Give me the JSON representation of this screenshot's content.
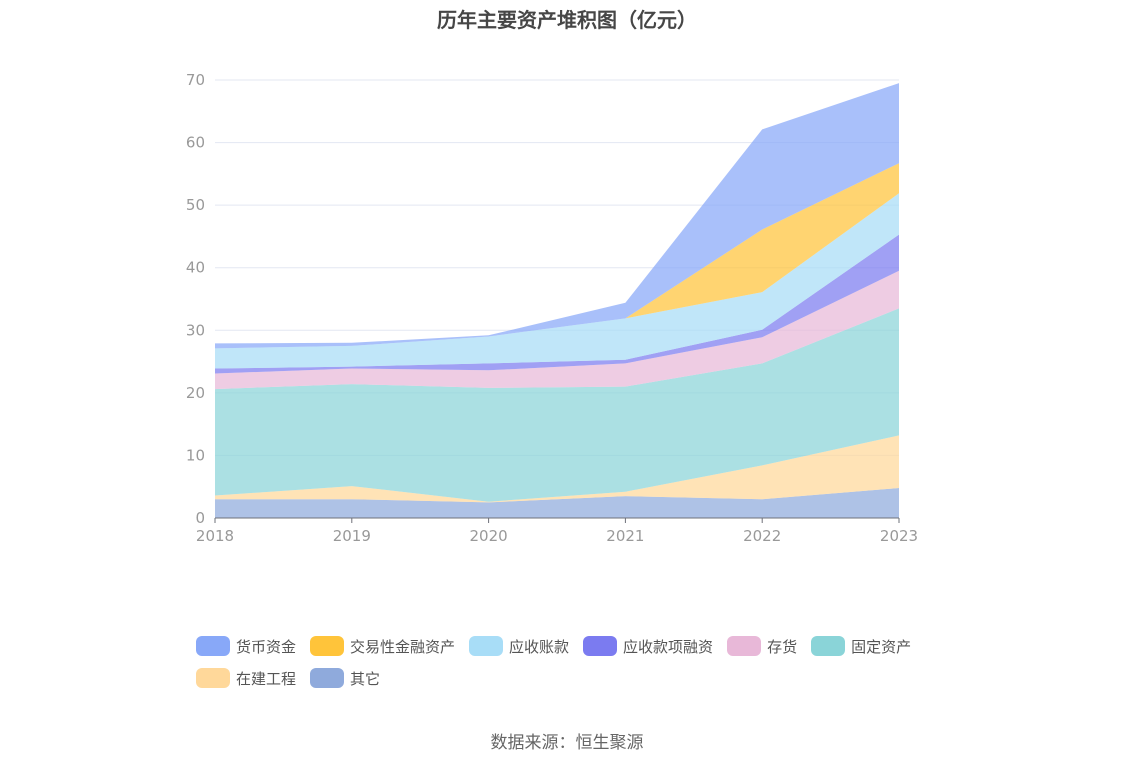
{
  "chart_data": {
    "type": "area",
    "stacked": true,
    "title": "历年主要资产堆积图（亿元）",
    "categories": [
      "2018",
      "2019",
      "2020",
      "2021",
      "2022",
      "2023"
    ],
    "ylim": [
      0,
      70
    ],
    "yticks": [
      0,
      10,
      20,
      30,
      40,
      50,
      60,
      70
    ],
    "xlabel": "",
    "ylabel": "",
    "grid": true,
    "legend_position": "bottom",
    "series": [
      {
        "name": "其它",
        "color": "#8FAADC",
        "values": [
          3.0,
          3.0,
          2.5,
          3.5,
          3.0,
          4.8
        ]
      },
      {
        "name": "在建工程",
        "color": "#FFD89A",
        "values": [
          0.6,
          2.1,
          0.1,
          0.7,
          5.4,
          8.4
        ]
      },
      {
        "name": "固定资产",
        "color": "#8AD4D8",
        "values": [
          17.0,
          16.3,
          18.2,
          16.8,
          16.3,
          20.3
        ]
      },
      {
        "name": "存货",
        "color": "#E8B8D8",
        "values": [
          2.5,
          2.5,
          2.8,
          3.7,
          4.2,
          6.0
        ]
      },
      {
        "name": "应收款项融资",
        "color": "#7B7BF0",
        "values": [
          0.8,
          0.3,
          1.1,
          0.6,
          1.2,
          5.8
        ]
      },
      {
        "name": "应收账款",
        "color": "#A8DDF7",
        "values": [
          3.2,
          3.3,
          4.3,
          6.6,
          6.0,
          6.6
        ]
      },
      {
        "name": "交易性金融资产",
        "color": "#FFC43A",
        "values": [
          0.0,
          0.0,
          0.0,
          0.0,
          10.0,
          4.8
        ]
      },
      {
        "name": "货币资金",
        "color": "#88A8F8",
        "values": [
          0.8,
          0.5,
          0.2,
          2.5,
          16.0,
          12.8
        ]
      }
    ]
  },
  "legend": {
    "row1": [
      "货币资金",
      "交易性金融资产",
      "应收账款",
      "应收款项融资",
      "存货",
      "固定资产"
    ],
    "row2": [
      "在建工程",
      "其它"
    ]
  },
  "source": "数据来源：恒生聚源"
}
